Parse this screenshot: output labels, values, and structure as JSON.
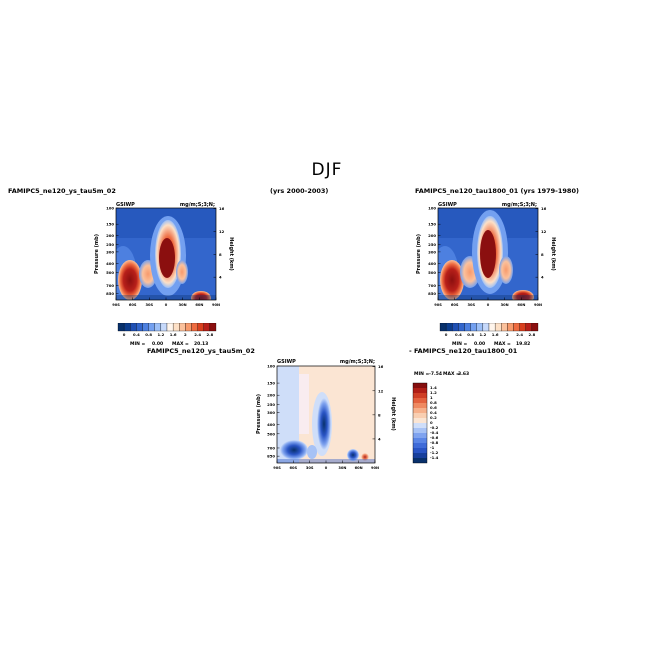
{
  "page": {
    "season": "DJF",
    "top_left_caption": "FAMIPC5_ne120_ys_tau5m_02",
    "top_years_caption": "(yrs 2000-2003)",
    "top_right_caption": "FAMIPC5_ne120_tau1800_01 (yrs 1979-1980)",
    "bottom_caption_left": "FAMIPC5_ne120_ys_tau5m_02",
    "bottom_caption_right": "- FAMIPC5_ne120_tau1800_01"
  },
  "colors": {
    "plot1_colorbar": [
      "#08306b",
      "#0c3d8e",
      "#1f50b4",
      "#3366cc",
      "#4d80e0",
      "#73a0f0",
      "#9cbff7",
      "#c6d9fb",
      "#fff5ec",
      "#fde0c6",
      "#fbc19c",
      "#f79a6c",
      "#ee6b40",
      "#d9401f",
      "#b8201a",
      "#8b0f0f"
    ],
    "plot3_colorbar": [
      "#08306b",
      "#173f9c",
      "#2954c4",
      "#3f6bd8",
      "#5b86e6",
      "#7fa3ef",
      "#a7c2f5",
      "#cfdef9",
      "#fbe5d3",
      "#f9cfb2",
      "#f6b08b",
      "#ef8a62",
      "#e3623f",
      "#cf3f26",
      "#b01f17",
      "#850e0e"
    ]
  },
  "chart_data": [
    {
      "type": "heatmap",
      "title_left": "GSIWP",
      "title_right": "mg/m;S;3;N;",
      "ylabel": "Pressure (mb)",
      "ylabel_right": "Height (km)",
      "x_ticks": [
        "90S",
        "60S",
        "30S",
        "0",
        "30N",
        "60N",
        "90N"
      ],
      "x_range": [
        -90,
        90
      ],
      "y_ticks": [
        "100",
        "150",
        "200",
        "250",
        "300",
        "400",
        "500",
        "700",
        "850"
      ],
      "y_range": [
        100,
        1000
      ],
      "y_scale": "log",
      "y_right_ticks": [
        "16",
        "12",
        "8",
        "4"
      ],
      "colorbar_labels": [
        "0",
        "0.4",
        "0.8",
        "1.2",
        "1.6",
        "2",
        "2.4",
        "2.8"
      ],
      "min_label": "MIN =",
      "min_value": "0.00",
      "max_label": "MAX =",
      "max_value": "20.13",
      "regions": [
        {
          "lat": -62,
          "p": 720,
          "value": 2.8
        },
        {
          "lat": -30,
          "p": 650,
          "value": 1.4
        },
        {
          "lat": 2,
          "p": 400,
          "value": 2.8
        },
        {
          "lat": 18,
          "p": 520,
          "value": 1.6
        },
        {
          "lat": 48,
          "p": 900,
          "value": 2.8
        }
      ]
    },
    {
      "type": "heatmap",
      "title_left": "GSIWP",
      "title_right": "mg/m;S;3;N;",
      "ylabel": "Pressure (mb)",
      "ylabel_right": "Height (km)",
      "x_ticks": [
        "90S",
        "60S",
        "30S",
        "0",
        "30N",
        "60N",
        "90N"
      ],
      "x_range": [
        -90,
        90
      ],
      "y_ticks": [
        "100",
        "150",
        "200",
        "250",
        "300",
        "400",
        "500",
        "700",
        "850"
      ],
      "y_range": [
        100,
        1000
      ],
      "y_scale": "log",
      "y_right_ticks": [
        "16",
        "12",
        "8",
        "4"
      ],
      "colorbar_labels": [
        "0",
        "0.4",
        "0.8",
        "1.2",
        "1.6",
        "2",
        "2.4",
        "2.8"
      ],
      "min_label": "MIN =",
      "min_value": "0.00",
      "max_label": "MAX =",
      "max_value": "19.82",
      "regions": [
        {
          "lat": -62,
          "p": 720,
          "value": 2.8
        },
        {
          "lat": -30,
          "p": 650,
          "value": 1.6
        },
        {
          "lat": 0,
          "p": 380,
          "value": 2.8
        },
        {
          "lat": 18,
          "p": 540,
          "value": 1.8
        },
        {
          "lat": 48,
          "p": 900,
          "value": 2.8
        }
      ]
    },
    {
      "type": "heatmap",
      "title_left": "GSIWP",
      "title_right": "mg/m;S;3;N;",
      "ylabel": "Pressure (mb)",
      "ylabel_right": "Height (km)",
      "x_ticks": [
        "90S",
        "60S",
        "30S",
        "0",
        "30N",
        "60N",
        "90N"
      ],
      "x_range": [
        -90,
        90
      ],
      "y_ticks": [
        "100",
        "150",
        "200",
        "250",
        "300",
        "400",
        "500",
        "700",
        "850"
      ],
      "y_range": [
        100,
        1000
      ],
      "y_scale": "log",
      "y_right_ticks": [
        "16",
        "12",
        "8",
        "4"
      ],
      "colorbar_labels": [
        "1.4",
        "1.2",
        "1",
        "0.8",
        "0.6",
        "0.4",
        "0.2",
        "0",
        "-0.2",
        "-0.4",
        "-0.6",
        "-0.8",
        "-1",
        "-1.2",
        "-1.4"
      ],
      "min_label": "MIN =",
      "min_value": "-7.54",
      "max_label": "MAX =",
      "max_value": "3.63"
    }
  ]
}
